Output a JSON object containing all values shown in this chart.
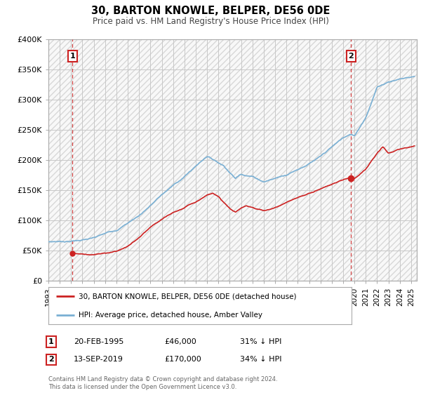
{
  "title": "30, BARTON KNOWLE, BELPER, DE56 0DE",
  "subtitle": "Price paid vs. HM Land Registry's House Price Index (HPI)",
  "ylim": [
    0,
    400000
  ],
  "yticks": [
    0,
    50000,
    100000,
    150000,
    200000,
    250000,
    300000,
    350000,
    400000
  ],
  "ytick_labels": [
    "£0",
    "£50K",
    "£100K",
    "£150K",
    "£200K",
    "£250K",
    "£300K",
    "£350K",
    "£400K"
  ],
  "hpi_color": "#7ab0d4",
  "price_color": "#cc2222",
  "annotation_color": "#cc2222",
  "sale1_year": 1995.13,
  "sale1_price": 46000,
  "sale1_label": "1",
  "sale1_date": "20-FEB-1995",
  "sale1_hpi_pct": "31% ↓ HPI",
  "sale2_year": 2019.71,
  "sale2_price": 170000,
  "sale2_label": "2",
  "sale2_date": "13-SEP-2019",
  "sale2_hpi_pct": "34% ↓ HPI",
  "legend_label_price": "30, BARTON KNOWLE, BELPER, DE56 0DE (detached house)",
  "legend_label_hpi": "HPI: Average price, detached house, Amber Valley",
  "footnote": "Contains HM Land Registry data © Crown copyright and database right 2024.\nThis data is licensed under the Open Government Licence v3.0.",
  "xlim_start": 1993.0,
  "xlim_end": 2025.5,
  "hpi_data_start": 1993.0,
  "price_data_start": 1995.0,
  "xticks": [
    1993,
    1994,
    1995,
    1996,
    1997,
    1998,
    1999,
    2000,
    2001,
    2002,
    2003,
    2004,
    2005,
    2006,
    2007,
    2008,
    2009,
    2010,
    2011,
    2012,
    2013,
    2014,
    2015,
    2016,
    2017,
    2018,
    2019,
    2020,
    2021,
    2022,
    2023,
    2024,
    2025
  ]
}
